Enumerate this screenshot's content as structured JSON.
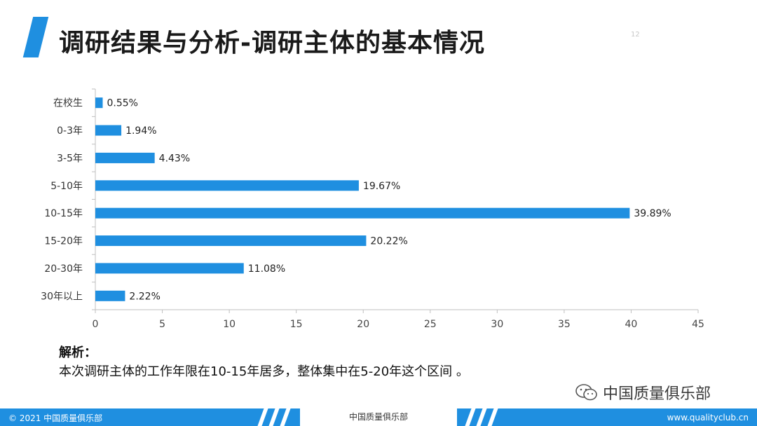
{
  "header": {
    "title": "调研结果与分析-调研主体的基本情况",
    "page_number": "12"
  },
  "chart_data": {
    "type": "bar",
    "orientation": "horizontal",
    "categories": [
      "在校生",
      "0-3年",
      "3-5年",
      "5-10年",
      "10-15年",
      "15-20年",
      "20-30年",
      "30年以上"
    ],
    "values": [
      0.55,
      1.94,
      4.43,
      19.67,
      39.89,
      20.22,
      11.08,
      2.22
    ],
    "value_labels": [
      "0.55%",
      "1.94%",
      "4.43%",
      "19.67%",
      "39.89%",
      "20.22%",
      "11.08%",
      "2.22%"
    ],
    "xlim": [
      0,
      45
    ],
    "xticks": [
      0,
      5,
      10,
      15,
      20,
      25,
      30,
      35,
      40,
      45
    ],
    "grid": false,
    "bar_color": "#1f8fe0"
  },
  "analysis": {
    "heading": "解析：",
    "text": "本次调研主体的工作年限在10-15年居多，整体集中在5-20年这个区间 。"
  },
  "brand": {
    "name": "中国质量俱乐部"
  },
  "footer": {
    "copyright": "© 2021 中国质量俱乐部",
    "center": "中国质量俱乐部",
    "url": "www.qualityclub.cn",
    "color": "#1f8fe0"
  }
}
